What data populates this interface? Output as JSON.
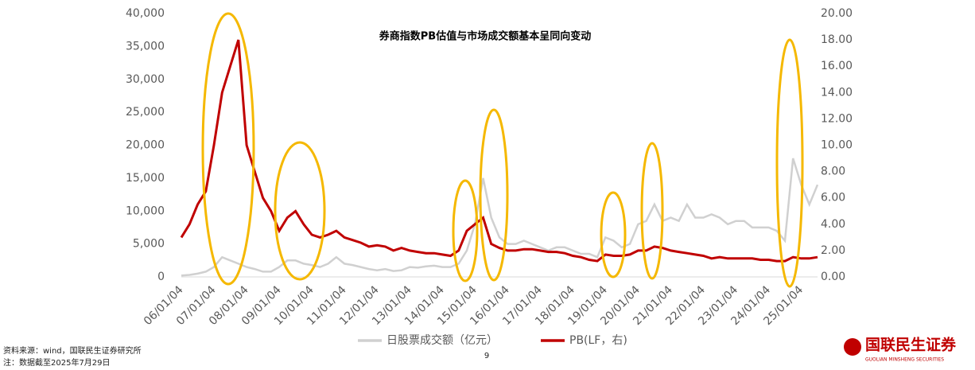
{
  "chart_data": {
    "type": "line",
    "title": "券商指数PB估值与市场成交额基本呈同向变动",
    "categories": [
      "06/01/04",
      null,
      null,
      null,
      "07/01/04",
      null,
      null,
      null,
      "08/01/04",
      null,
      null,
      null,
      "09/01/04",
      null,
      null,
      null,
      "10/01/04",
      null,
      null,
      null,
      "11/01/04",
      null,
      null,
      null,
      "12/01/04",
      null,
      null,
      null,
      "13/01/04",
      null,
      null,
      null,
      "14/01/04",
      null,
      null,
      null,
      "15/01/04",
      null,
      null,
      null,
      "16/01/04",
      null,
      null,
      null,
      "17/01/04",
      null,
      null,
      null,
      "18/01/04",
      null,
      null,
      null,
      "19/01/04",
      null,
      null,
      null,
      "20/01/04",
      null,
      null,
      null,
      "21/01/04",
      null,
      null,
      null,
      "22/01/04",
      null,
      null,
      null,
      "23/01/04",
      null,
      null,
      null,
      "24/01/04",
      null,
      null,
      null,
      "25/01/04",
      null,
      null
    ],
    "series": [
      {
        "name": "日股票成交额（亿元）",
        "color": "#d0d0d0",
        "axis": "y",
        "values": [
          200,
          300,
          500,
          800,
          1500,
          3000,
          2500,
          2000,
          1500,
          1200,
          800,
          800,
          1500,
          2500,
          2500,
          2000,
          1800,
          1500,
          2000,
          3000,
          2000,
          1800,
          1500,
          1200,
          1000,
          1200,
          900,
          1000,
          1500,
          1400,
          1600,
          1700,
          1500,
          1500,
          2000,
          4000,
          8000,
          15000,
          9000,
          6000,
          5000,
          5000,
          5500,
          5000,
          4500,
          4000,
          4500,
          4500,
          4000,
          3500,
          3500,
          3000,
          6000,
          5500,
          4500,
          5000,
          8000,
          8500,
          11000,
          8500,
          9000,
          8500,
          11000,
          9000,
          9000,
          9500,
          9000,
          8000,
          8500,
          8500,
          7500,
          7500,
          7500,
          7000,
          5500,
          18000,
          14000,
          11000,
          14000
        ]
      },
      {
        "name": "PB(LF，右)",
        "color": "#c00000",
        "axis": "y2",
        "values": [
          3.0,
          4.0,
          5.5,
          6.5,
          10,
          14,
          16,
          18,
          10,
          8,
          6,
          5,
          3.5,
          4.5,
          5.0,
          4.0,
          3.2,
          3.0,
          3.2,
          3.5,
          3.0,
          2.8,
          2.6,
          2.3,
          2.4,
          2.3,
          2.0,
          2.2,
          2.0,
          1.9,
          1.8,
          1.8,
          1.7,
          1.6,
          2.0,
          3.5,
          4.0,
          4.5,
          2.5,
          2.2,
          2.0,
          2.0,
          2.1,
          2.1,
          2.0,
          1.9,
          1.9,
          1.8,
          1.6,
          1.5,
          1.3,
          1.2,
          1.7,
          1.6,
          1.6,
          1.7,
          2.0,
          2.0,
          2.3,
          2.2,
          2.0,
          1.9,
          1.8,
          1.7,
          1.6,
          1.4,
          1.5,
          1.4,
          1.4,
          1.4,
          1.4,
          1.3,
          1.3,
          1.2,
          1.2,
          1.5,
          1.4,
          1.4,
          1.5
        ]
      }
    ],
    "ylim": [
      0,
      40000
    ],
    "yticks": [
      0,
      {
        "value": 5000,
        "label": "5,000"
      },
      {
        "value": 10000,
        "label": "10,000"
      },
      {
        "value": 15000,
        "label": "15,000"
      },
      {
        "value": 20000,
        "label": "20,000"
      },
      {
        "value": 25000,
        "label": "25,000"
      },
      {
        "value": 30000,
        "label": "30,000"
      },
      {
        "value": 35000,
        "label": "35,000"
      },
      {
        "value": 40000,
        "label": "40,000"
      }
    ],
    "y2lim": [
      0,
      20
    ],
    "y2ticks": [
      {
        "value": 0,
        "label": "0.00"
      },
      {
        "value": 2,
        "label": "2.00"
      },
      {
        "value": 4,
        "label": "4.00"
      },
      {
        "value": 6,
        "label": "6.00"
      },
      {
        "value": 8,
        "label": "8.00"
      },
      {
        "value": 10,
        "label": "10.00"
      },
      {
        "value": 12,
        "label": "12.00"
      },
      {
        "value": 14,
        "label": "14.00"
      },
      {
        "value": 16,
        "label": "16.00"
      },
      {
        "value": 18,
        "label": "18.00"
      },
      {
        "value": 20,
        "label": "20.00"
      }
    ],
    "legend": "bottom"
  },
  "footer": {
    "source": "资料来源：wind，国联民生证券研究所",
    "note": "注：数据截至2025年7月29日",
    "page": "9",
    "logo": "国联民生证券",
    "logo_en": "GUOLIAN MINSHENG SECURITIES"
  }
}
